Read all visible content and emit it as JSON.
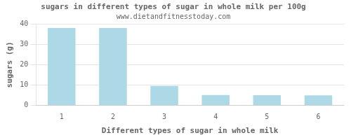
{
  "chart_data": {
    "type": "bar",
    "title": "sugars in different types of sugar in whole milk per 100g",
    "subtitle": "www.dietandfitnesstoday.com",
    "xlabel": "Different types of sugar in whole milk",
    "ylabel": "sugars (g)",
    "categories": [
      1,
      2,
      3,
      4,
      5,
      6
    ],
    "values": [
      38.0,
      38.0,
      9.6,
      5.2,
      5.1,
      5.0
    ],
    "color": "#add8e6",
    "ylim": [
      0,
      40
    ],
    "yticks": [
      0,
      10,
      20,
      30,
      40
    ],
    "grid": "y"
  }
}
